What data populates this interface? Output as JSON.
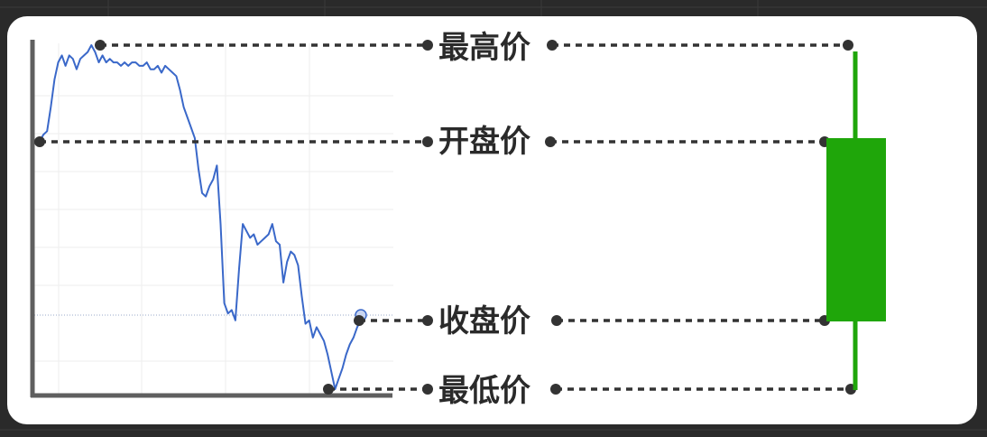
{
  "labels": {
    "high": "最高价",
    "open": "开盘价",
    "close": "收盘价",
    "low": "最低价"
  },
  "candle": {
    "type": "bullish-hollow-green",
    "color": "#1fa60a",
    "open_level": "open",
    "close_level": "close"
  },
  "line_series": {
    "color": "#3a68c9",
    "y": [
      0.72,
      0.74,
      0.75,
      0.82,
      0.9,
      0.95,
      0.97,
      0.94,
      0.97,
      0.96,
      0.93,
      0.96,
      0.97,
      0.98,
      1.0,
      0.98,
      0.95,
      0.97,
      0.95,
      0.96,
      0.95,
      0.95,
      0.94,
      0.95,
      0.94,
      0.95,
      0.95,
      0.94,
      0.94,
      0.95,
      0.93,
      0.93,
      0.94,
      0.92,
      0.94,
      0.93,
      0.92,
      0.91,
      0.87,
      0.82,
      0.79,
      0.76,
      0.73,
      0.64,
      0.57,
      0.56,
      0.59,
      0.61,
      0.65,
      0.48,
      0.25,
      0.22,
      0.23,
      0.2,
      0.35,
      0.48,
      0.46,
      0.44,
      0.45,
      0.42,
      0.43,
      0.44,
      0.45,
      0.48,
      0.43,
      0.42,
      0.31,
      0.37,
      0.4,
      0.39,
      0.36,
      0.27,
      0.19,
      0.2,
      0.15,
      0.18,
      0.16,
      0.14,
      0.1,
      0.05,
      0.0,
      0.03,
      0.06,
      0.1,
      0.13,
      0.15,
      0.18,
      0.2
    ]
  }
}
